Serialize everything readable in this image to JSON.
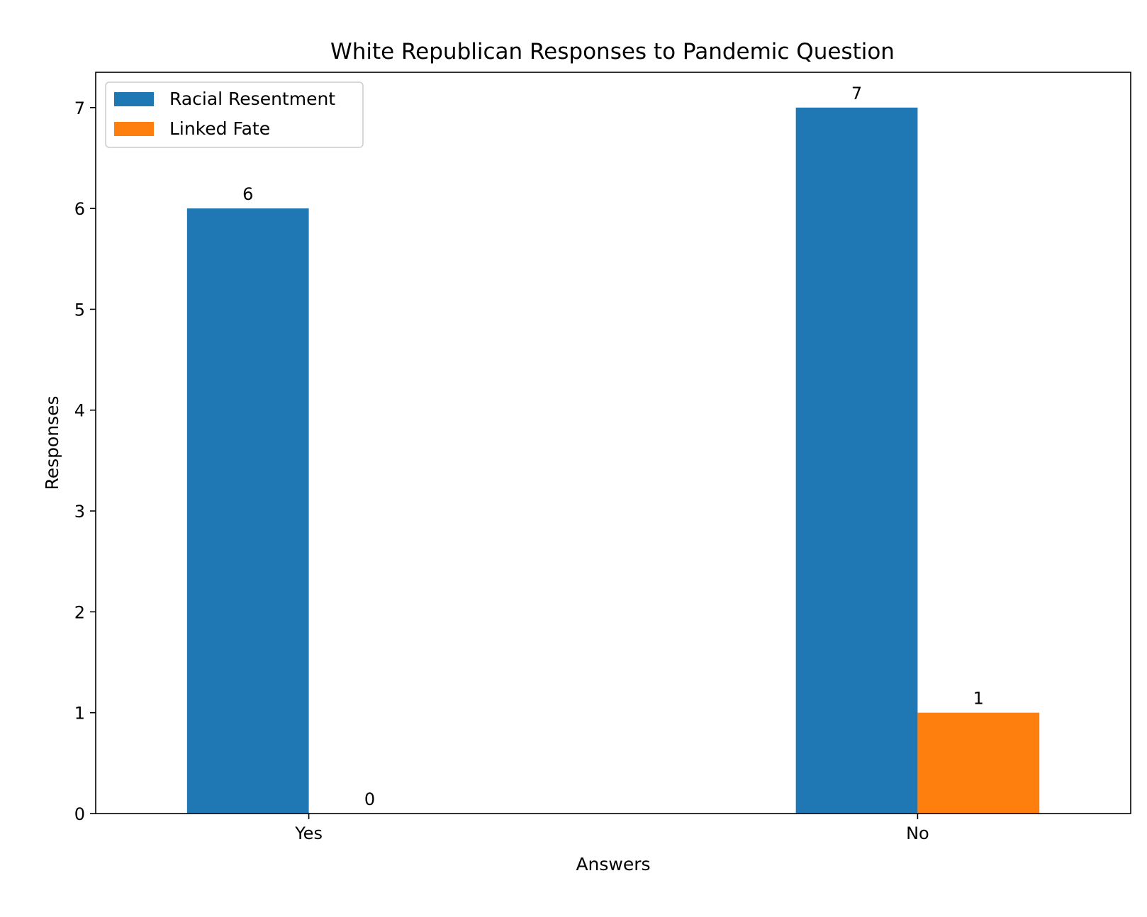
{
  "chart_data": {
    "type": "bar",
    "title": "White Republican Responses to Pandemic Question",
    "xlabel": "Answers",
    "ylabel": "Responses",
    "categories": [
      "Yes",
      "No"
    ],
    "series": [
      {
        "name": "Racial Resentment",
        "color": "#1f77b4",
        "values": [
          6,
          7
        ]
      },
      {
        "name": "Linked Fate",
        "color": "#ff7f0e",
        "values": [
          0,
          1
        ]
      }
    ],
    "ylim": [
      0,
      7.35
    ],
    "yticks": [
      0,
      1,
      2,
      3,
      4,
      5,
      6,
      7
    ],
    "grid": false,
    "legend_position": "top-left"
  }
}
